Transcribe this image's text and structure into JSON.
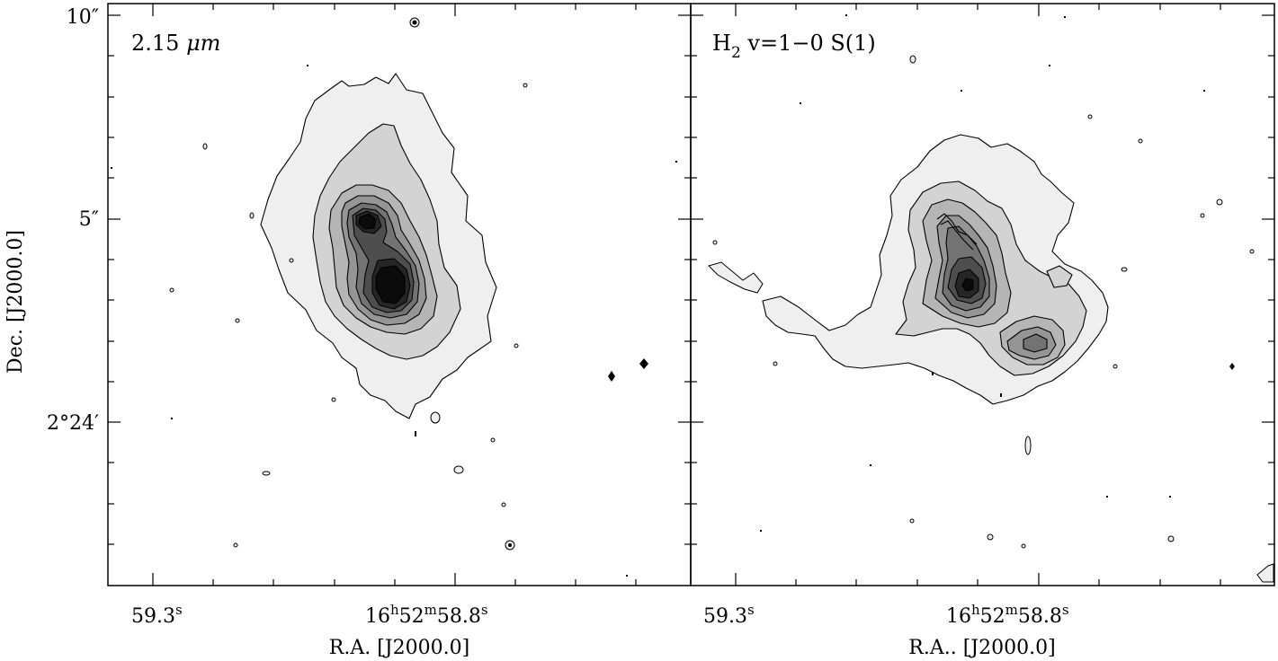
{
  "figure": {
    "ylabel": "Dec. [J2000.0]",
    "ytick_labels": [
      {
        "text": "10″",
        "dec_offset_arcsec": 10
      },
      {
        "text": "5″",
        "dec_offset_arcsec": 5
      },
      {
        "text": "2°24′",
        "dec_offset_arcsec": 0
      }
    ]
  },
  "chart_data": [
    {
      "type": "heatmap",
      "subtype": "filled-contour-map",
      "panel_label": "2.15 μm",
      "panel_label_parts": {
        "base": "2.15 ",
        "unit": "μm"
      },
      "xlabel": "R.A. [J2000.0]",
      "xtick_labels": [
        {
          "text": "59.3",
          "sup": "s",
          "ra_seconds": 59.3
        },
        {
          "text": "16h52m58.8s",
          "parts": [
            "16",
            "h",
            "52",
            "m",
            "58.8",
            "s"
          ],
          "ra_seconds": 58.8
        }
      ],
      "xlim_ra_seconds": [
        59.37,
        58.47
      ],
      "ylim_dec_offset_arcsec": [
        -4.1,
        10.1
      ],
      "grayscale": [
        "#efefef",
        "#d3d3d3",
        "#b5b5b5",
        "#959595",
        "#737373",
        "#4e4e4e",
        "#262626",
        "#0b0b0b"
      ],
      "components": [
        {
          "name": "outer-nebula",
          "ra_seconds": 58.85,
          "dec_offset_arcsec": 3.4,
          "peak_level": 1
        },
        {
          "name": "northern-peak",
          "ra_seconds": 58.92,
          "dec_offset_arcsec": 5.0,
          "peak_level": 8
        },
        {
          "name": "southern-peak",
          "ra_seconds": 58.88,
          "dec_offset_arcsec": 3.2,
          "peak_level": 8
        }
      ],
      "point_sources": [
        {
          "ra_seconds": 58.61,
          "dec_offset_arcsec": 1.1
        },
        {
          "ra_seconds": 58.55,
          "dec_offset_arcsec": 1.4
        },
        {
          "ra_seconds": 58.83,
          "dec_offset_arcsec": 9.8
        }
      ]
    },
    {
      "type": "heatmap",
      "subtype": "filled-contour-map",
      "panel_label": "H2 v=1−0 S(1)",
      "panel_label_parts": {
        "pre": "H",
        "sub": "2",
        "post": " v=1−0 S(1)"
      },
      "xlabel": "R.A.. [J2000.0]",
      "xtick_labels": [
        {
          "text": "59.3",
          "sup": "s",
          "ra_seconds": 59.3
        },
        {
          "text": "16h52m58.8s",
          "parts": [
            "16",
            "h",
            "52",
            "m",
            "58.8",
            "s"
          ],
          "ra_seconds": 58.8
        }
      ],
      "xlim_ra_seconds": [
        59.37,
        58.47
      ],
      "ylim_dec_offset_arcsec": [
        -4.1,
        10.1
      ],
      "grayscale": [
        "#efefef",
        "#d3d3d3",
        "#b5b5b5",
        "#959595",
        "#737373",
        "#4e4e4e",
        "#262626",
        "#0b0b0b"
      ],
      "components": [
        {
          "name": "central-knot",
          "ra_seconds": 58.9,
          "dec_offset_arcsec": 3.3,
          "peak_level": 7
        },
        {
          "name": "northern-ridge",
          "ra_seconds": 58.93,
          "dec_offset_arcsec": 4.8,
          "peak_level": 5
        },
        {
          "name": "south-east-knot",
          "ra_seconds": 58.8,
          "dec_offset_arcsec": 2.0,
          "peak_level": 4
        },
        {
          "name": "western-arm",
          "ra_seconds": 59.2,
          "dec_offset_arcsec": 2.7,
          "peak_level": 1
        }
      ],
      "point_sources": [
        {
          "ra_seconds": 58.52,
          "dec_offset_arcsec": 1.4
        },
        {
          "ra_seconds": 58.57,
          "dec_offset_arcsec": 5.4
        }
      ]
    }
  ]
}
